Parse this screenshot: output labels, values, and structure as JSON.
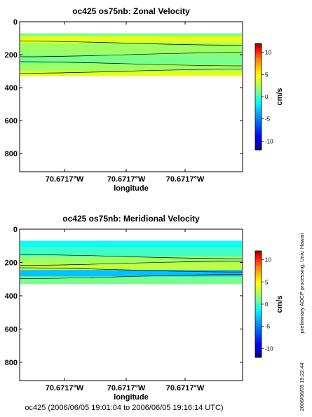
{
  "footer": "oc425 (2006/06/05 19:01:04 to 2006/06/05 19:16:14 UTC)",
  "side_note_processing": "preliminary ADCP processing,   Univ. Hawaii",
  "side_note_timestamp": "2006/06/05 19:22:44",
  "colors": {
    "background": "#ffffff",
    "axis": "#000000",
    "colormap": [
      "#00008f",
      "#0000ff",
      "#0080ff",
      "#00ffff",
      "#80ff80",
      "#ffff00",
      "#ff8000",
      "#ff0000",
      "#800000"
    ]
  },
  "chart_data": [
    {
      "type": "heatmap",
      "title": "oc425 os75nb: Zonal Velocity",
      "xlabel": "longitude",
      "ylabel": "",
      "x_tick_labels": [
        "70.6717°W",
        "70.6717°W",
        "70.6717°W"
      ],
      "y_tick_labels": [
        "0",
        "200",
        "400",
        "600",
        "800"
      ],
      "ylim": [
        910,
        0
      ],
      "y_reversed": true,
      "data_depth_range": [
        70,
        330
      ],
      "colorbar": {
        "label": "cm/s",
        "range": [
          -12,
          12
        ],
        "tick_labels": [
          "10",
          "5",
          "0",
          "-5",
          "-10"
        ]
      },
      "layers": [
        {
          "depth_top": 70,
          "depth_bottom": 85,
          "value": 1
        },
        {
          "depth_top": 85,
          "depth_bottom": 130,
          "value": 4
        },
        {
          "depth_top": 130,
          "depth_bottom": 200,
          "value": 2
        },
        {
          "depth_top": 200,
          "depth_bottom": 255,
          "value": 1
        },
        {
          "depth_top": 255,
          "depth_bottom": 300,
          "value": 2
        },
        {
          "depth_top": 300,
          "depth_bottom": 330,
          "value": 4
        }
      ],
      "contour_depths": [
        130,
        200,
        255,
        300
      ]
    },
    {
      "type": "heatmap",
      "title": "oc425 os75nb: Meridional Velocity",
      "xlabel": "longitude",
      "ylabel": "",
      "x_tick_labels": [
        "70.6717°W",
        "70.6717°W",
        "70.6717°W"
      ],
      "y_tick_labels": [
        "0",
        "200",
        "400",
        "600",
        "800"
      ],
      "ylim": [
        910,
        0
      ],
      "y_reversed": true,
      "data_depth_range": [
        70,
        330
      ],
      "colorbar": {
        "label": "cm/s",
        "range": [
          -12,
          12
        ],
        "tick_labels": [
          "10",
          "5",
          "0",
          "-5",
          "-10"
        ]
      },
      "layers": [
        {
          "depth_top": 70,
          "depth_bottom": 110,
          "value": -1
        },
        {
          "depth_top": 110,
          "depth_bottom": 165,
          "value": 0
        },
        {
          "depth_top": 165,
          "depth_bottom": 205,
          "value": 2
        },
        {
          "depth_top": 205,
          "depth_bottom": 245,
          "value": 3
        },
        {
          "depth_top": 245,
          "depth_bottom": 285,
          "value": -3
        },
        {
          "depth_top": 285,
          "depth_bottom": 330,
          "value": 1
        }
      ],
      "contour_depths": [
        165,
        205,
        245,
        285
      ]
    }
  ]
}
